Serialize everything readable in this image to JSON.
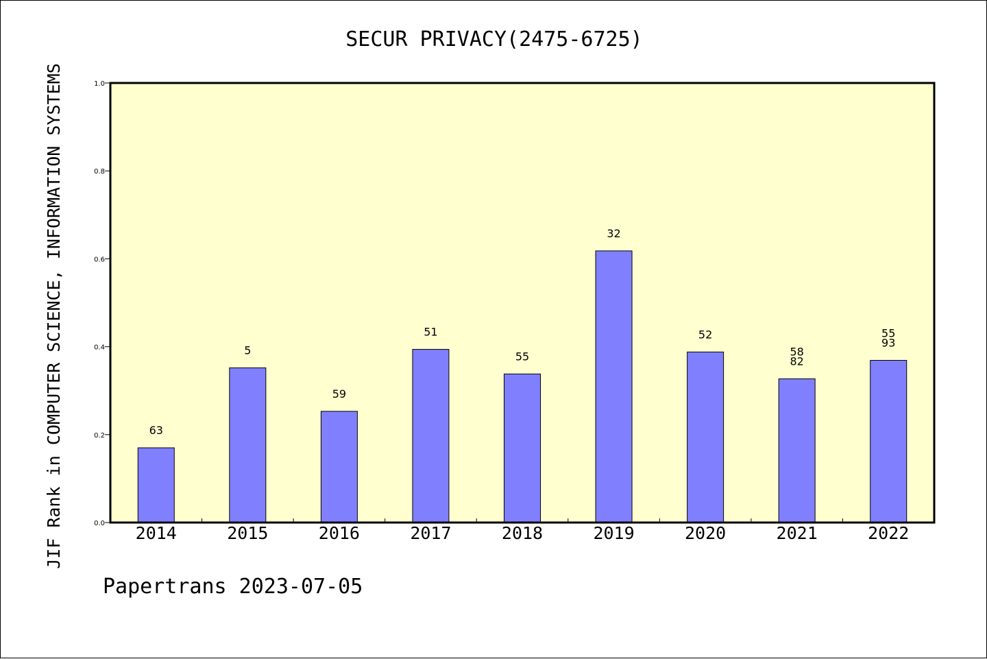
{
  "chart_data": {
    "type": "bar",
    "title": "SECUR PRIVACY(2475-6725)",
    "xlabel": "",
    "ylabel": "JIF Rank in COMPUTER SCIENCE, INFORMATION SYSTEMS",
    "ylim": [
      0,
      1.0
    ],
    "yticks": [
      "0.0",
      "0.2",
      "0.4",
      "0.6",
      "0.8",
      "1.0"
    ],
    "grid": false,
    "categories": [
      "2014",
      "2015",
      "2016",
      "2017",
      "2018",
      "2019",
      "2020",
      "2021",
      "2022"
    ],
    "values": [
      0.17,
      0.352,
      0.253,
      0.394,
      0.338,
      0.618,
      0.388,
      0.327,
      0.369
    ],
    "labels": [
      [
        "63"
      ],
      [
        "5"
      ],
      [
        "59"
      ],
      [
        "51"
      ],
      [
        "55"
      ],
      [
        "32"
      ],
      [
        "52"
      ],
      [
        "58",
        "82"
      ],
      [
        "55",
        "93"
      ]
    ]
  },
  "colors": {
    "plot_background": "#ffffd0",
    "bar_fill": "#8080ff",
    "bar_stroke": "#000000",
    "axis": "#000000"
  },
  "footer": {
    "text": "Papertrans 2023-07-05"
  }
}
